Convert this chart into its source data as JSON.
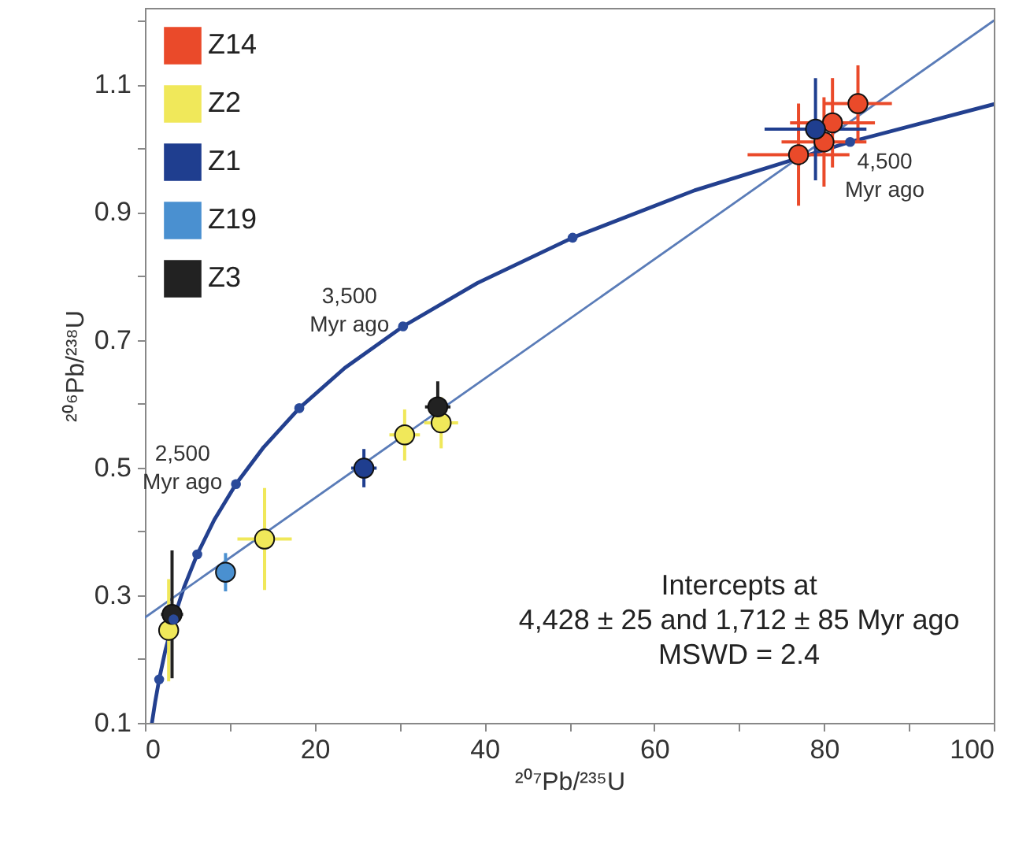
{
  "chart_data": {
    "type": "scatter",
    "xlabel": "²⁰⁷Pb/²³⁵U",
    "ylabel": "²⁰⁶Pb/²³⁸U",
    "xlim": [
      0,
      100
    ],
    "ylim": [
      0.1,
      1.22
    ],
    "xticks": [
      0,
      {
        "value": 10,
        "label": null
      },
      20,
      {
        "value": 30,
        "label": null
      },
      40,
      {
        "value": 50,
        "label": null
      },
      60,
      {
        "value": 70,
        "label": null
      },
      80,
      {
        "value": 90,
        "label": null
      },
      100
    ],
    "yticks": [
      0.1,
      {
        "value": 0.2,
        "label": null
      },
      0.3,
      {
        "value": 0.4,
        "label": null
      },
      0.5,
      {
        "value": 0.6,
        "label": null
      },
      0.7,
      {
        "value": 0.8,
        "label": null
      },
      0.9,
      {
        "value": 1.0,
        "label": null
      },
      1.1,
      {
        "value": 1.2,
        "label": null
      }
    ],
    "grid": false,
    "legend": "top left",
    "marker": "circle",
    "series": [
      {
        "type": "line",
        "marker": "none",
        "color": "#23408f",
        "x": [
          0.83,
          1.2,
          1.68,
          2.42,
          3.38,
          4.6,
          6.17,
          8.17,
          10.73,
          14.0,
          18.19,
          23.55,
          30.41,
          39.18,
          50.39,
          64.73,
          83.08,
          100
        ],
        "values": [
          0.1,
          0.132,
          0.168,
          0.214,
          0.262,
          0.312,
          0.364,
          0.418,
          0.474,
          0.532,
          0.593,
          0.656,
          0.721,
          0.789,
          0.86,
          0.934,
          1.01,
          1.069
        ]
      },
      {
        "type": "line",
        "marker": "none",
        "color": "#5a7cb8",
        "x": [
          0,
          100
        ],
        "values": [
          0.265,
          1.2
        ]
      },
      {
        "name": "Z14",
        "color": "#ea4a2a",
        "x": [
          77,
          81,
          84,
          80
        ],
        "values": [
          0.99,
          1.04,
          1.07,
          1.01
        ],
        "xerrors": [
          6,
          5,
          4,
          5
        ],
        "errors": [
          0.08,
          0.07,
          0.06,
          0.07
        ]
      },
      {
        "name": "Z2",
        "color": "#f0e85a",
        "x": [
          14.1,
          30.6,
          34.9,
          2.8
        ],
        "values": [
          0.388,
          0.551,
          0.57,
          0.245
        ],
        "xerrors": [
          3.2,
          1.8,
          2,
          1
        ],
        "errors": [
          0.08,
          0.04,
          0.04,
          0.08
        ]
      },
      {
        "name": "Z1",
        "color": "#1f3e8f",
        "x": [
          25.8,
          79
        ],
        "values": [
          0.499,
          1.03
        ],
        "xerrors": [
          1.5,
          6
        ],
        "errors": [
          0.03,
          0.08
        ]
      },
      {
        "name": "Z19",
        "color": "#4a90d0",
        "x": [
          9.5
        ],
        "values": [
          0.336
        ],
        "xerrors": [
          0.5
        ],
        "errors": [
          0.03
        ]
      },
      {
        "name": "Z3",
        "color": "#222222",
        "x": [
          34.5,
          3.2
        ],
        "values": [
          0.595,
          0.27
        ],
        "xerrors": [
          1.5,
          1.3
        ],
        "errors": [
          0.04,
          0.1
        ]
      },
      {
        "type": "scatter",
        "color": "#2a4a9a",
        "x": [
          1.68,
          3.38,
          6.17,
          10.73,
          18.19,
          30.41,
          50.39,
          83.08
        ],
        "values": [
          0.168,
          0.262,
          0.364,
          0.474,
          0.593,
          0.721,
          0.86,
          1.01
        ]
      }
    ],
    "annotations": [
      {
        "text": "2,500\nMyr ago",
        "x": 10.73,
        "y": 0.474
      },
      {
        "text": "3,500\nMyr ago",
        "x": 30.41,
        "y": 0.721
      },
      {
        "text": "4,500\nMyr ago",
        "x": 83.08,
        "y": 1.01
      },
      "Intercepts at\n4,428 ± 25 and 1,712 ± 85 Myr ago\nMSWD = 2.4"
    ]
  }
}
